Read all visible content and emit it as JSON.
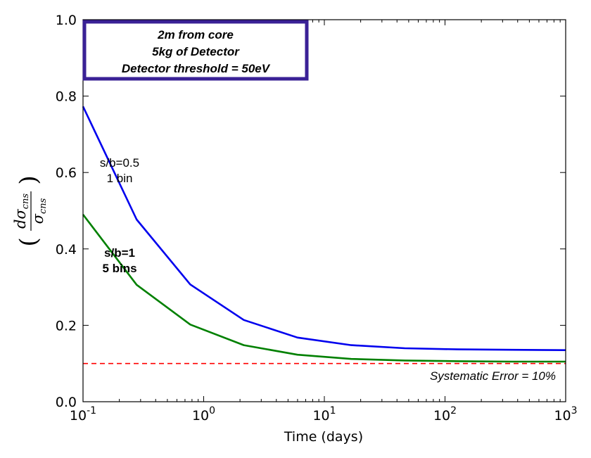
{
  "chart_data": {
    "type": "line",
    "xlabel": "Time (days)",
    "ylabel": {
      "numerator": "dσ",
      "numerator_sub": "cns",
      "denominator": "σ",
      "denominator_sub": "cns"
    },
    "xscale": "log",
    "xlim": [
      0.1,
      1000
    ],
    "ylim": [
      0.0,
      1.0
    ],
    "x_tick_labels": [
      {
        "value": 0.1,
        "base": "10",
        "exp": "-1"
      },
      {
        "value": 1,
        "base": "10",
        "exp": "0"
      },
      {
        "value": 10,
        "base": "10",
        "exp": "1"
      },
      {
        "value": 100,
        "base": "10",
        "exp": "2"
      },
      {
        "value": 1000,
        "base": "10",
        "exp": "3"
      }
    ],
    "y_tick_labels": [
      "0.0",
      "0.2",
      "0.4",
      "0.6",
      "0.8",
      "1.0"
    ],
    "grid": false,
    "series": [
      {
        "color": "#0000ee",
        "x": [
          0.1,
          0.278,
          0.774,
          2.15,
          5.99,
          16.7,
          46.4,
          129,
          359,
          1000
        ],
        "values": [
          0.773,
          0.477,
          0.307,
          0.214,
          0.168,
          0.148,
          0.14,
          0.137,
          0.136,
          0.135
        ]
      },
      {
        "color": "#008000",
        "x": [
          0.1,
          0.278,
          0.774,
          2.15,
          5.99,
          16.7,
          46.4,
          129,
          359,
          1000
        ],
        "values": [
          0.49,
          0.306,
          0.202,
          0.148,
          0.123,
          0.112,
          0.108,
          0.106,
          0.105,
          0.105
        ]
      }
    ],
    "reference_line": {
      "y": 0.1,
      "color": "#ff0000",
      "style": "dashed",
      "label": "Systematic Error = 10%"
    },
    "annotations": [
      {
        "lines": [
          "s/b=0.5",
          "1 bin"
        ],
        "bold": false
      },
      {
        "lines": [
          "s/b=1",
          "5 bins"
        ],
        "bold": true
      }
    ],
    "info_box": {
      "lines": [
        "2m from core",
        "5kg of Detector",
        "Detector threshold = 50eV"
      ],
      "border_color": "#3a2196"
    }
  }
}
